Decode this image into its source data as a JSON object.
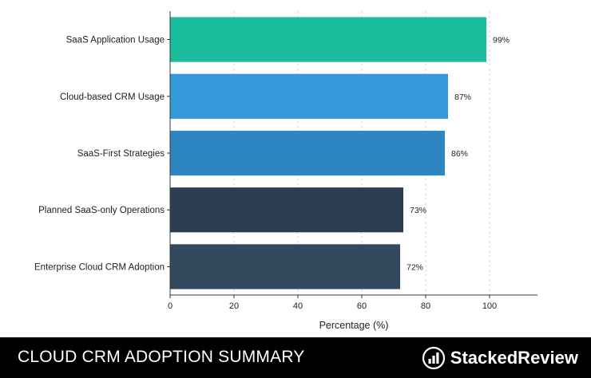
{
  "chart_data": {
    "type": "bar",
    "orientation": "horizontal",
    "categories": [
      "SaaS Application Usage",
      "Cloud-based CRM Usage",
      "SaaS-First Strategies",
      "Planned SaaS-only Operations",
      "Enterprise Cloud CRM Adoption"
    ],
    "values": [
      99,
      87,
      86,
      73,
      72
    ],
    "value_labels": [
      "99%",
      "87%",
      "86%",
      "73%",
      "72%"
    ],
    "colors": [
      "#1abc9c",
      "#3498db",
      "#2e86c1",
      "#2c3e50",
      "#34495e"
    ],
    "xlabel": "Percentage (%)",
    "xlim": [
      0,
      115
    ],
    "xticks": [
      0,
      20,
      40,
      60,
      80,
      100
    ],
    "grid": "vertical dashed"
  },
  "footer": {
    "title": "CLOUD CRM ADOPTION SUMMARY",
    "brand": "StackedReview"
  }
}
